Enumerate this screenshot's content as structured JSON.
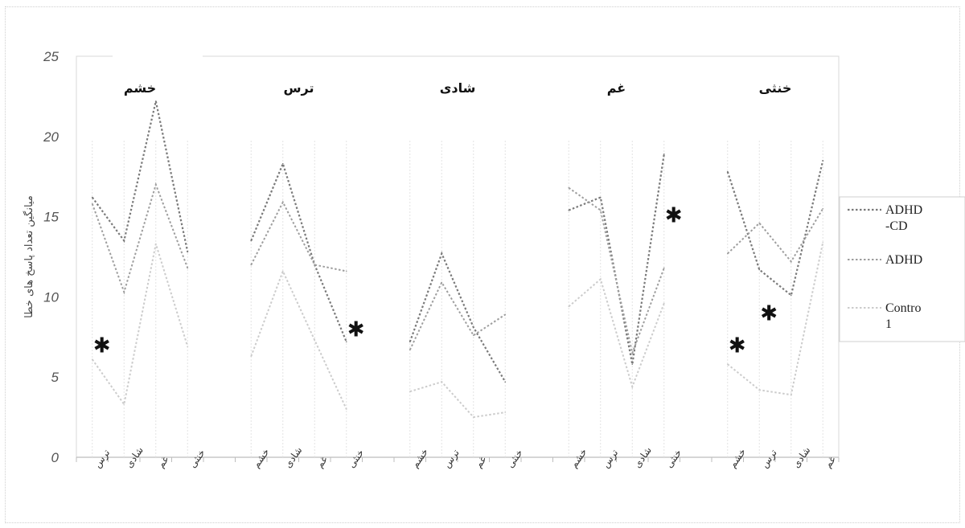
{
  "chart_data": {
    "type": "line",
    "title": "",
    "ylabel": "میانگین تعداد پاسخ های خطا",
    "xlabel": "",
    "ylim": [
      0,
      25
    ],
    "yticks": [
      0,
      5,
      10,
      15,
      20,
      25
    ],
    "grid": false,
    "legend_position": "right",
    "groups": [
      {
        "title": "خشم",
        "categories": [
          "ترس",
          "شادی",
          "غم",
          "خنثی"
        ],
        "series": [
          {
            "name": "ADHD -CD",
            "values": [
              16.2,
              13.5,
              22.2,
              12.8
            ]
          },
          {
            "name": "ADHD",
            "values": [
              15.8,
              10.3,
              17.0,
              11.8
            ]
          },
          {
            "name": "Contro 1",
            "values": [
              6.1,
              3.3,
              13.3,
              6.9
            ]
          }
        ],
        "significance_marker": {
          "symbol": "✱",
          "y": 7.0
        }
      },
      {
        "title": "ترس",
        "categories": [
          "خشم",
          "شادی",
          "غم",
          "خنثی"
        ],
        "series": [
          {
            "name": "ADHD -CD",
            "values": [
              13.5,
              18.3,
              12.0,
              7.2
            ]
          },
          {
            "name": "ADHD",
            "values": [
              12.0,
              15.9,
              12.0,
              11.6
            ]
          },
          {
            "name": "Contro 1",
            "values": [
              6.3,
              11.6,
              7.3,
              3.0
            ]
          }
        ],
        "significance_marker": {
          "symbol": "✱",
          "y": 8.0
        }
      },
      {
        "title": "شادی",
        "categories": [
          "خشم",
          "ترس",
          "غم",
          "خنثی"
        ],
        "series": [
          {
            "name": "ADHD -CD",
            "values": [
              7.2,
              12.7,
              8.1,
              4.7
            ]
          },
          {
            "name": "ADHD",
            "values": [
              6.7,
              10.9,
              7.6,
              8.9
            ]
          },
          {
            "name": "Contro 1",
            "values": [
              4.1,
              4.7,
              2.5,
              2.8
            ]
          }
        ]
      },
      {
        "title": "غم",
        "categories": [
          "خشم",
          "ترس",
          "شادی",
          "خنثی"
        ],
        "series": [
          {
            "name": "ADHD -CD",
            "values": [
              15.4,
              16.2,
              5.8,
              18.9
            ]
          },
          {
            "name": "ADHD",
            "values": [
              16.8,
              15.4,
              6.5,
              11.8
            ]
          },
          {
            "name": "Contro 1",
            "values": [
              9.4,
              11.1,
              4.4,
              9.6
            ]
          }
        ],
        "significance_marker": {
          "symbol": "✱",
          "y": 15.1
        }
      },
      {
        "title": "خنثی",
        "categories": [
          "خشم",
          "ترس",
          "شادی",
          "غم"
        ],
        "series": [
          {
            "name": "ADHD -CD",
            "values": [
              17.8,
              11.7,
              10.1,
              18.5
            ]
          },
          {
            "name": "ADHD",
            "values": [
              12.7,
              14.6,
              12.2,
              15.5
            ]
          },
          {
            "name": "Contro 1",
            "values": [
              5.8,
              4.2,
              3.9,
              13.4
            ]
          }
        ],
        "significance_marker": [
          {
            "symbol": "✱",
            "y": 7.0
          },
          {
            "symbol": "✱",
            "y": 9.0
          }
        ]
      }
    ],
    "legend": [
      {
        "name": "ADHD -CD",
        "lines": [
          "ADHD",
          "-CD"
        ],
        "color": "#7a7a7a"
      },
      {
        "name": "ADHD",
        "lines": [
          "ADHD"
        ],
        "color": "#9e9e9e"
      },
      {
        "name": "Contro 1",
        "lines": [
          "Contro",
          "1"
        ],
        "color": "#cccccc"
      }
    ]
  }
}
